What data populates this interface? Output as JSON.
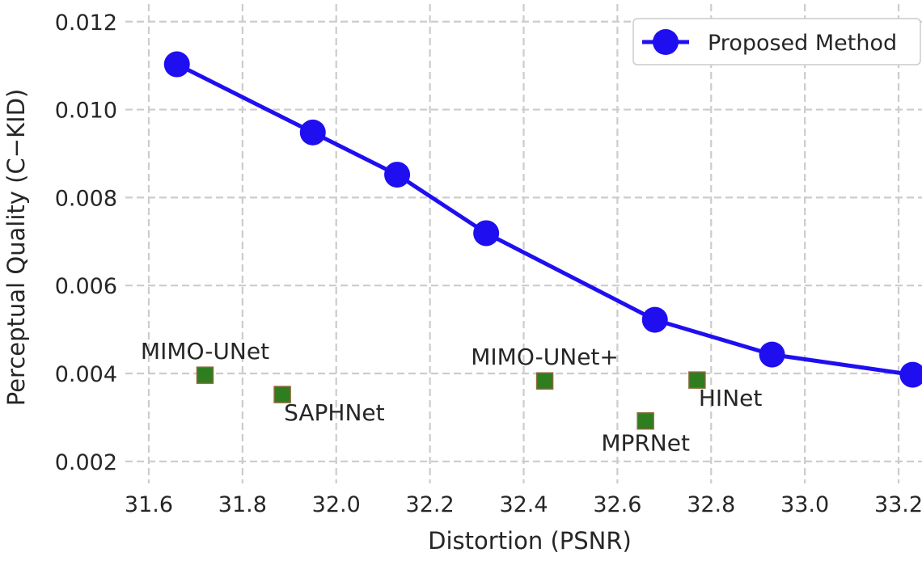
{
  "chart_data": {
    "type": "scatter",
    "title": "",
    "xlabel": "Distortion (PSNR)",
    "ylabel": "Perceptual Quality (C−KID)",
    "xlim": [
      31.55,
      33.25
    ],
    "ylim": [
      0.0015,
      0.0124
    ],
    "xticks": [
      31.6,
      31.8,
      32.0,
      32.2,
      32.4,
      32.6,
      32.8,
      33.0,
      33.2
    ],
    "xtick_labels": [
      "31.6",
      "31.8",
      "32.0",
      "32.2",
      "32.4",
      "32.6",
      "32.8",
      "33.0",
      "33.2"
    ],
    "yticks": [
      0.002,
      0.004,
      0.006,
      0.008,
      0.01,
      0.012
    ],
    "ytick_labels": [
      "0.002",
      "0.004",
      "0.006",
      "0.008",
      "0.010",
      "0.012"
    ],
    "grid": true,
    "legend_position": "top-right",
    "series": [
      {
        "name": "Proposed Method",
        "style": "line-with-circles",
        "color": "#1f0ff0",
        "points": [
          {
            "x": 31.66,
            "y": 0.01103
          },
          {
            "x": 31.95,
            "y": 0.00948
          },
          {
            "x": 32.13,
            "y": 0.00852
          },
          {
            "x": 32.32,
            "y": 0.00719
          },
          {
            "x": 32.68,
            "y": 0.00522
          },
          {
            "x": 32.93,
            "y": 0.00443
          },
          {
            "x": 33.23,
            "y": 0.00397
          }
        ]
      },
      {
        "style": "square-markers",
        "color": "#2e7d1f",
        "edge_color": "#8a6a3a",
        "points": [
          {
            "x": 31.72,
            "y": 0.00396,
            "label": "MIMO-UNet",
            "label_pos": "above"
          },
          {
            "x": 31.885,
            "y": 0.00352,
            "label": "SAPHNet",
            "label_pos": "below-right"
          },
          {
            "x": 32.445,
            "y": 0.00383,
            "label": "MIMO-UNet+",
            "label_pos": "above"
          },
          {
            "x": 32.66,
            "y": 0.00292,
            "label": "MPRNet",
            "label_pos": "below"
          },
          {
            "x": 32.77,
            "y": 0.00385,
            "label": "HINet",
            "label_pos": "below-right"
          }
        ]
      }
    ]
  }
}
